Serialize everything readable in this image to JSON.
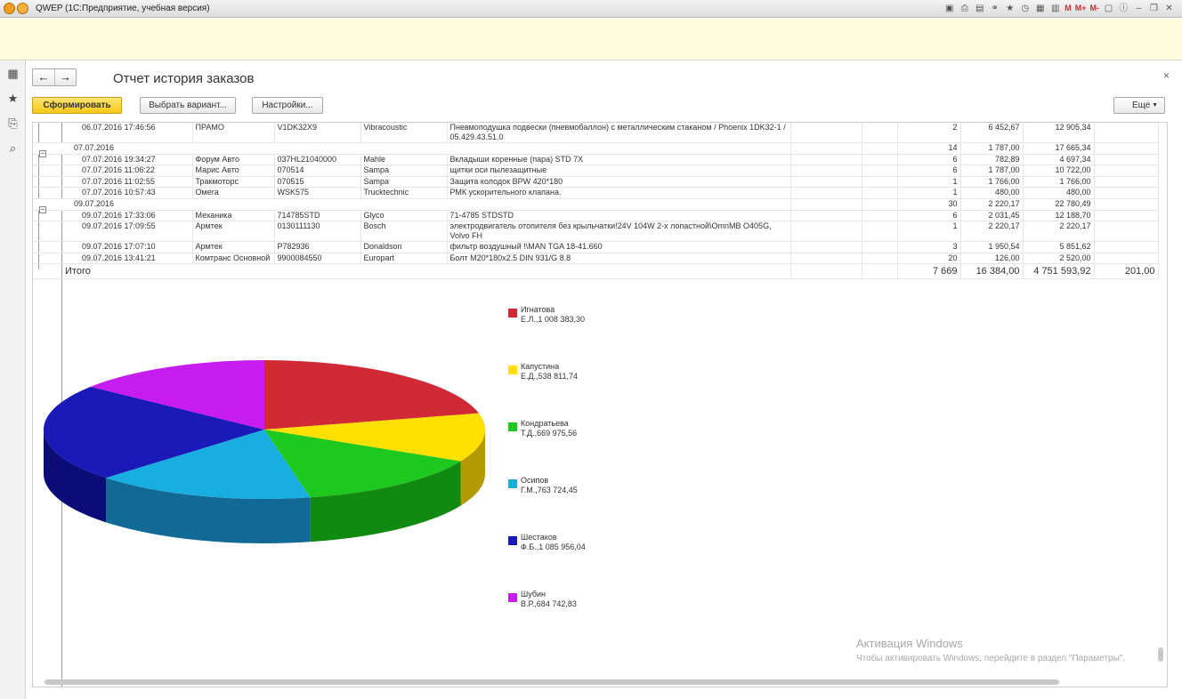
{
  "window": {
    "title": "QWEP  (1С:Предприятие, учебная версия)",
    "mem_labels": [
      "M",
      "M+",
      "M-"
    ]
  },
  "toolbar": {
    "title": "Отчет история заказов",
    "generate_label": "Сформировать",
    "choose_variant_label": "Выбрать вариант...",
    "settings_label": "Настройки...",
    "more_label": "Еще",
    "back_icon": "←",
    "forward_icon": "→",
    "close_icon": "×"
  },
  "rows": [
    {
      "type": "item",
      "date": "06.07.2016 17:46:56",
      "client": "ПРАМО",
      "article": "V1DK32X9",
      "brand": "Vibracoustic",
      "name": "Пневмоподушка подвески (пневмобаллон) с металлическим стаканом / Phoenix 1DK32-1 / 05.429.43.51.0",
      "qty": "2",
      "price": "6 452,67",
      "sum": "12 905,34"
    },
    {
      "type": "group",
      "date": "07.07.2016",
      "qty": "14",
      "price": "1 787,00",
      "sum": "17 665,34"
    },
    {
      "type": "item",
      "date": "07.07.2016 19:34:27",
      "client": "Форум Авто",
      "article": "037HL21040000",
      "brand": "Mahle",
      "name": "Вкладыши коренные (пара) STD 7X",
      "qty": "6",
      "price": "782,89",
      "sum": "4 697,34"
    },
    {
      "type": "item",
      "date": "07.07.2016 11:06:22",
      "client": "Марис Авто",
      "article": "070514",
      "brand": "Sampa",
      "name": "щитки оси пылезащитные",
      "qty": "6",
      "price": "1 787,00",
      "sum": "10 722,00"
    },
    {
      "type": "item",
      "date": "07.07.2016 11:02:55",
      "client": "Тракмоторс",
      "article": "070515",
      "brand": "Sampa",
      "name": "Защита колодок BPW 420*180",
      "qty": "1",
      "price": "1 766,00",
      "sum": "1 766,00"
    },
    {
      "type": "item",
      "date": "07.07.2016 10:57:43",
      "client": "Омега",
      "article": "WSK575",
      "brand": "Trucktechnic",
      "name": "РМК ускорительного клапана.",
      "qty": "1",
      "price": "480,00",
      "sum": "480,00"
    },
    {
      "type": "group",
      "date": "09.07.2016",
      "qty": "30",
      "price": "2 220,17",
      "sum": "22 780,49"
    },
    {
      "type": "item",
      "date": "09.07.2016 17:33:06",
      "client": "Механика",
      "article": "714785STD",
      "brand": "Glyco",
      "name": "71-4785 STDSTD",
      "qty": "6",
      "price": "2 031,45",
      "sum": "12 188,70"
    },
    {
      "type": "item",
      "date": "09.07.2016 17:09:55",
      "client": "Армтек",
      "article": "0130111130",
      "brand": "Bosch",
      "name": "электродвигатель отопителя без крыльчатки!24V 104W 2-х лопастной\\OmnMB O405G, Volvo FH",
      "qty": "1",
      "price": "2 220,17",
      "sum": "2 220,17"
    },
    {
      "type": "item",
      "date": "09.07.2016 17:07:10",
      "client": "Армтек",
      "article": "P782936",
      "brand": "Donaldson",
      "name": "фильтр воздушный !\\MAN TGA 18-41.660",
      "qty": "3",
      "price": "1 950,54",
      "sum": "5 851,62"
    },
    {
      "type": "item",
      "date": "09.07.2016 13:41:21",
      "client": "Комтранс Основной",
      "article": "9900084550",
      "brand": "Europart",
      "name": "Болт M20*180x2.5   DIN 931/G 8.8",
      "qty": "20",
      "price": "126,00",
      "sum": "2 520,00"
    }
  ],
  "totals": {
    "label": "Итого",
    "qty": "7 669",
    "price": "16 384,00",
    "sum": "4 751 593,92",
    "extra": "201,00"
  },
  "chart_data": {
    "type": "pie",
    "categories": [
      "Игнатова Е.Л.",
      "Капустина Е.Д.",
      "Кондратьева Т.Д.",
      "Осипов Г.М.",
      "Шестаков Ф.Б.",
      "Шубин В.Р."
    ],
    "values": [
      1008383.3,
      538811.74,
      669975.56,
      763724.45,
      1085956.04,
      684742.83
    ],
    "colors": [
      "#d12a36",
      "#ffe000",
      "#1ec81e",
      "#1aaee0",
      "#1a1ab8",
      "#c61cf0"
    ],
    "side_colors": [
      "#8a1b24",
      "#b39a00",
      "#118a11",
      "#116a96",
      "#0c0c78",
      "#7e10a0"
    ],
    "legend": [
      {
        "line1": "Игнатова",
        "line2": "Е.Л.,1 008 383,30"
      },
      {
        "line1": "Капустина",
        "line2": "Е.Д.,538 811,74"
      },
      {
        "line1": "Кондратьева",
        "line2": "Т.Д.,669 975,56"
      },
      {
        "line1": "Осипов",
        "line2": "Г.М.,763 724,45"
      },
      {
        "line1": "Шестаков",
        "line2": "Ф.Б.,1 085 956,04"
      },
      {
        "line1": "Шубин",
        "line2": "В.Р.,684 742,83"
      }
    ],
    "legend_placement": "right"
  },
  "watermark": {
    "line1": "Активация Windows",
    "line2": "Чтобы активировать Windows, перейдите в раздел \"Параметры\"."
  }
}
